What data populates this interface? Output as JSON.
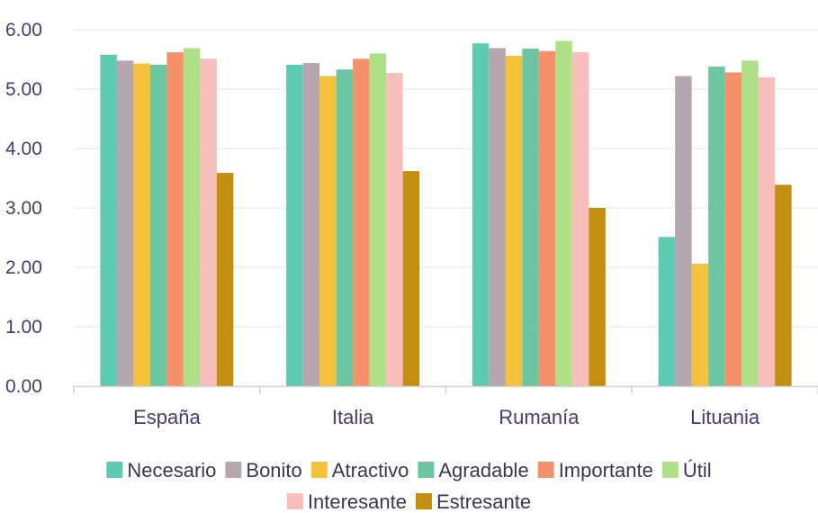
{
  "chart_data": {
    "type": "bar",
    "categories": [
      "España",
      "Italia",
      "Rumanía",
      "Lituania"
    ],
    "series": [
      {
        "name": "Necesario",
        "color": "#5ccbb2",
        "values": [
          5.58,
          5.41,
          5.77,
          2.51
        ]
      },
      {
        "name": "Bonito",
        "color": "#b6a6ad",
        "values": [
          5.48,
          5.44,
          5.69,
          5.22
        ]
      },
      {
        "name": "Atractivo",
        "color": "#f4c13b",
        "values": [
          5.43,
          5.22,
          5.56,
          2.06
        ]
      },
      {
        "name": "Agradable",
        "color": "#6cc6a2",
        "values": [
          5.41,
          5.33,
          5.68,
          5.38
        ]
      },
      {
        "name": "Importante",
        "color": "#f5916a",
        "values": [
          5.62,
          5.51,
          5.64,
          5.28
        ]
      },
      {
        "name": "Útil",
        "color": "#afdf86",
        "values": [
          5.69,
          5.6,
          5.81,
          5.48
        ]
      },
      {
        "name": "Interesante",
        "color": "#f8bebb",
        "values": [
          5.51,
          5.27,
          5.62,
          5.2
        ]
      },
      {
        "name": "Estresante",
        "color": "#c48f10",
        "values": [
          3.59,
          3.62,
          3.0,
          3.39
        ]
      }
    ],
    "y_ticks": [
      "0.00",
      "1.00",
      "2.00",
      "3.00",
      "4.00",
      "5.00",
      "6.00"
    ],
    "ylim": [
      0,
      6
    ],
    "grid": true,
    "legend_position": "bottom"
  }
}
